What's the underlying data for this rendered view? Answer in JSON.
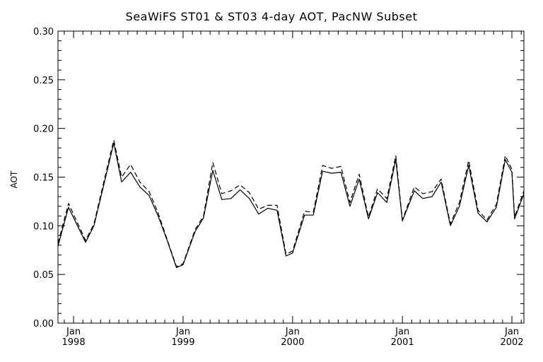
{
  "chart_data": {
    "type": "line",
    "title": "SeaWiFS ST01 & ST03 4-day AOT, PacNW Subset",
    "xlabel": "",
    "ylabel": "AOT",
    "ylim": [
      0.0,
      0.3
    ],
    "xlim": [
      "1997-11-10",
      "2002-02-10"
    ],
    "yticks": [
      "0.00",
      "0.05",
      "0.10",
      "0.15",
      "0.20",
      "0.25",
      "0.30"
    ],
    "xticks": [
      {
        "date": "1998-01-01",
        "top": "Jan",
        "bottom": "1998"
      },
      {
        "date": "1999-01-01",
        "top": "Jan",
        "bottom": "1999"
      },
      {
        "date": "2000-01-01",
        "top": "Jan",
        "bottom": "2000"
      },
      {
        "date": "2001-01-01",
        "top": "Jan",
        "bottom": "2001"
      },
      {
        "date": "2002-01-01",
        "top": "Jan",
        "bottom": "2002"
      }
    ],
    "x": [
      "1997-11-10",
      "1997-12-15",
      "1998-02-10",
      "1998-03-10",
      "1998-04-10",
      "1998-05-15",
      "1998-06-10",
      "1998-07-10",
      "1998-08-10",
      "1998-09-10",
      "1998-10-10",
      "1998-11-10",
      "1998-12-10",
      "1999-01-01",
      "1999-02-10",
      "1999-03-10",
      "1999-04-10",
      "1999-05-10",
      "1999-06-10",
      "1999-07-10",
      "1999-08-10",
      "1999-09-10",
      "1999-10-10",
      "1999-11-10",
      "1999-12-10",
      "2000-01-01",
      "2000-02-10",
      "2000-03-10",
      "2000-04-10",
      "2000-05-10",
      "2000-06-10",
      "2000-07-10",
      "2000-08-10",
      "2000-09-10",
      "2000-10-10",
      "2000-11-10",
      "2000-12-10",
      "2001-01-01",
      "2001-02-10",
      "2001-03-10",
      "2001-04-10",
      "2001-05-10",
      "2001-06-10",
      "2001-07-10",
      "2001-08-10",
      "2001-09-10",
      "2001-10-10",
      "2001-11-10",
      "2001-12-10",
      "2002-01-01",
      "2002-01-10",
      "2002-02-10"
    ],
    "series": [
      {
        "style": "solid",
        "values": [
          0.079,
          0.119,
          0.083,
          0.1,
          0.14,
          0.185,
          0.145,
          0.155,
          0.14,
          0.131,
          0.11,
          0.084,
          0.057,
          0.06,
          0.094,
          0.108,
          0.157,
          0.127,
          0.128,
          0.137,
          0.128,
          0.112,
          0.118,
          0.116,
          0.069,
          0.072,
          0.111,
          0.111,
          0.156,
          0.154,
          0.155,
          0.12,
          0.148,
          0.107,
          0.134,
          0.124,
          0.168,
          0.105,
          0.136,
          0.128,
          0.13,
          0.145,
          0.1,
          0.12,
          0.162,
          0.113,
          0.104,
          0.119,
          0.168,
          0.155,
          0.107,
          0.133
        ]
      },
      {
        "style": "dashed",
        "values": [
          0.082,
          0.123,
          0.085,
          0.102,
          0.143,
          0.188,
          0.15,
          0.163,
          0.145,
          0.135,
          0.113,
          0.085,
          0.058,
          0.061,
          0.096,
          0.11,
          0.165,
          0.133,
          0.136,
          0.142,
          0.134,
          0.117,
          0.121,
          0.121,
          0.071,
          0.074,
          0.115,
          0.114,
          0.162,
          0.159,
          0.161,
          0.124,
          0.153,
          0.109,
          0.138,
          0.128,
          0.172,
          0.106,
          0.14,
          0.133,
          0.135,
          0.148,
          0.102,
          0.124,
          0.167,
          0.116,
          0.106,
          0.122,
          0.172,
          0.158,
          0.109,
          0.136
        ]
      }
    ],
    "grid": false,
    "colors": {
      "line": "#000000",
      "axis": "#000000",
      "background": "#ffffff"
    }
  }
}
